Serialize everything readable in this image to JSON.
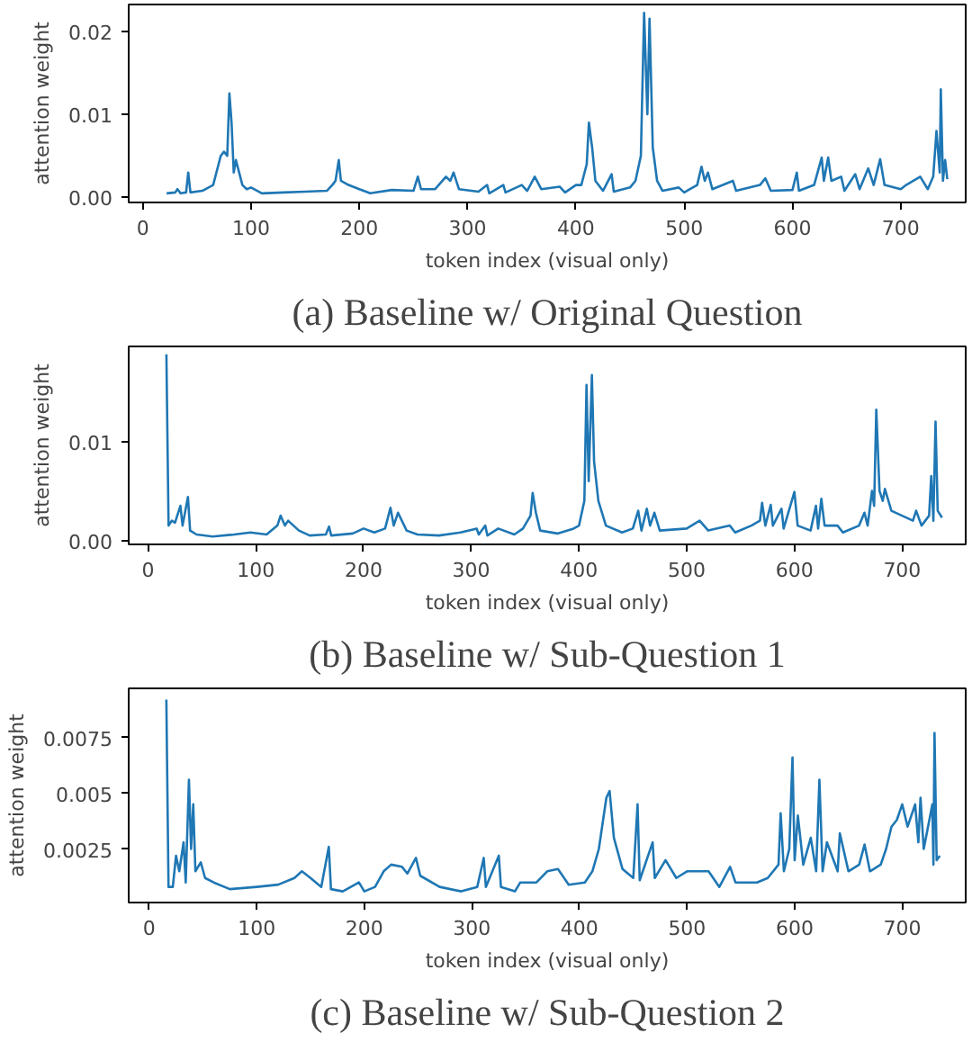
{
  "chart_data": [
    {
      "type": "line",
      "title": "(a) Baseline w/ Original Question",
      "xlabel": "token index (visual only)",
      "ylabel": "attention weight",
      "grid": false,
      "xlim": [
        -13,
        760
      ],
      "ylim": [
        -0.0006,
        0.0232
      ],
      "xticks": [
        0,
        100,
        200,
        300,
        400,
        500,
        600,
        700
      ],
      "yticks": [
        {
          "value": 0,
          "label": "0.00"
        },
        {
          "value": 0.01,
          "label": "0.01"
        },
        {
          "value": 0.02,
          "label": "0.02"
        }
      ],
      "x": [
        22,
        30,
        32,
        35,
        40,
        42,
        44,
        55,
        65,
        72,
        75,
        78,
        80,
        82,
        84,
        86,
        88,
        92,
        96,
        100,
        110,
        130,
        150,
        170,
        175,
        178,
        181,
        183,
        190,
        200,
        210,
        230,
        250,
        254,
        257,
        270,
        280,
        284,
        287,
        292,
        310,
        318,
        320,
        333,
        335,
        350,
        355,
        362,
        368,
        385,
        390,
        400,
        405,
        410,
        412,
        415,
        418,
        425,
        433,
        435,
        450,
        455,
        460,
        463,
        466,
        468,
        471,
        475,
        480,
        495,
        500,
        512,
        516,
        519,
        522,
        526,
        545,
        548,
        570,
        575,
        580,
        600,
        604,
        606,
        620,
        627,
        629,
        633,
        636,
        645,
        648,
        658,
        662,
        670,
        675,
        681,
        685,
        700,
        705,
        718,
        725,
        730,
        733,
        736,
        737,
        739,
        741,
        743
      ],
      "series": [
        {
          "color": "#1f77b4",
          "values": [
            0.0005,
            0.0006,
            0.001,
            0.0005,
            0.0006,
            0.003,
            0.0006,
            0.0008,
            0.0015,
            0.005,
            0.0055,
            0.005,
            0.0125,
            0.009,
            0.003,
            0.0045,
            0.0035,
            0.0015,
            0.001,
            0.0012,
            0.0005,
            0.0006,
            0.0007,
            0.0008,
            0.0015,
            0.002,
            0.0045,
            0.002,
            0.0015,
            0.001,
            0.0005,
            0.0009,
            0.0008,
            0.0025,
            0.001,
            0.001,
            0.0025,
            0.002,
            0.003,
            0.001,
            0.0007,
            0.0015,
            0.0005,
            0.0015,
            0.0006,
            0.0015,
            0.0008,
            0.0025,
            0.001,
            0.0013,
            0.0006,
            0.0015,
            0.0015,
            0.004,
            0.009,
            0.006,
            0.002,
            0.0008,
            0.0028,
            0.0007,
            0.0012,
            0.002,
            0.005,
            0.0222,
            0.01,
            0.0215,
            0.006,
            0.002,
            0.0008,
            0.0012,
            0.0006,
            0.0015,
            0.0037,
            0.002,
            0.003,
            0.001,
            0.002,
            0.0008,
            0.0015,
            0.0023,
            0.0008,
            0.0009,
            0.003,
            0.0008,
            0.0015,
            0.0048,
            0.002,
            0.0048,
            0.002,
            0.0025,
            0.0008,
            0.0028,
            0.001,
            0.0035,
            0.0015,
            0.0046,
            0.0015,
            0.001,
            0.0015,
            0.0025,
            0.001,
            0.0025,
            0.008,
            0.003,
            0.013,
            0.002,
            0.0045,
            0.0022
          ]
        }
      ]
    },
    {
      "type": "line",
      "title": "(b) Baseline w/ Sub-Question 1",
      "xlabel": "token index (visual only)",
      "ylabel": "attention weight",
      "grid": false,
      "xlim": [
        -18,
        759
      ],
      "ylim": [
        -0.0004,
        0.0196
      ],
      "xticks": [
        0,
        100,
        200,
        300,
        400,
        500,
        600,
        700
      ],
      "yticks": [
        {
          "value": 0,
          "label": "0.00"
        },
        {
          "value": 0.01,
          "label": "0.01"
        }
      ],
      "x": [
        17,
        19,
        22,
        25,
        30,
        32,
        37,
        39,
        45,
        60,
        80,
        95,
        110,
        120,
        123,
        127,
        130,
        140,
        150,
        165,
        168,
        170,
        190,
        200,
        210,
        220,
        225,
        228,
        232,
        240,
        250,
        270,
        290,
        305,
        307,
        313,
        315,
        325,
        340,
        348,
        355,
        357,
        360,
        364,
        380,
        395,
        400,
        405,
        407,
        409,
        412,
        414,
        418,
        425,
        440,
        450,
        455,
        458,
        463,
        466,
        470,
        475,
        500,
        512,
        520,
        540,
        545,
        560,
        568,
        570,
        573,
        578,
        580,
        588,
        590,
        600,
        603,
        615,
        620,
        622,
        625,
        628,
        640,
        645,
        660,
        665,
        668,
        672,
        674,
        676,
        679,
        682,
        684,
        690,
        700,
        710,
        713,
        718,
        725,
        727,
        729,
        731,
        733,
        737
      ],
      "series": [
        {
          "color": "#1f77b4",
          "values": [
            0.0188,
            0.0015,
            0.002,
            0.0018,
            0.0035,
            0.0015,
            0.0044,
            0.001,
            0.0006,
            0.0004,
            0.0006,
            0.0008,
            0.0006,
            0.0015,
            0.0025,
            0.0015,
            0.002,
            0.001,
            0.0005,
            0.0006,
            0.0014,
            0.0005,
            0.0007,
            0.0012,
            0.0008,
            0.0012,
            0.0033,
            0.0015,
            0.0028,
            0.001,
            0.0006,
            0.0005,
            0.0008,
            0.0012,
            0.0006,
            0.0015,
            0.0005,
            0.0012,
            0.0006,
            0.0012,
            0.0025,
            0.0048,
            0.0028,
            0.001,
            0.0007,
            0.0012,
            0.0015,
            0.004,
            0.0157,
            0.006,
            0.0167,
            0.008,
            0.004,
            0.0015,
            0.0008,
            0.0012,
            0.003,
            0.001,
            0.0032,
            0.0015,
            0.0028,
            0.001,
            0.0012,
            0.002,
            0.001,
            0.0015,
            0.0008,
            0.0015,
            0.002,
            0.0038,
            0.0015,
            0.0036,
            0.0015,
            0.0032,
            0.0012,
            0.0049,
            0.0015,
            0.001,
            0.0035,
            0.0012,
            0.0042,
            0.0015,
            0.0015,
            0.0008,
            0.0015,
            0.0028,
            0.0015,
            0.005,
            0.0035,
            0.0132,
            0.005,
            0.004,
            0.0052,
            0.003,
            0.0025,
            0.002,
            0.003,
            0.0015,
            0.0025,
            0.0065,
            0.002,
            0.012,
            0.003,
            0.0023
          ]
        }
      ]
    },
    {
      "type": "line",
      "title": "(c) Baseline w/ Sub-Question 2",
      "xlabel": "token index (visual only)",
      "ylabel": "attention weight",
      "grid": false,
      "xlim": [
        -19,
        759
      ],
      "ylim": [
        0.0001,
        0.0097
      ],
      "xticks": [
        0,
        100,
        200,
        300,
        400,
        500,
        600,
        700
      ],
      "yticks": [
        0.0025,
        0.005,
        0.0075
      ],
      "x": [
        16,
        18,
        22,
        25,
        28,
        32,
        34,
        37,
        39,
        41,
        43,
        48,
        52,
        60,
        75,
        100,
        120,
        135,
        142,
        150,
        160,
        167,
        169,
        180,
        195,
        200,
        210,
        218,
        225,
        235,
        240,
        248,
        252,
        270,
        290,
        305,
        311,
        313,
        325,
        327,
        340,
        345,
        360,
        370,
        380,
        390,
        405,
        412,
        418,
        425,
        428,
        432,
        440,
        450,
        454,
        456,
        468,
        470,
        480,
        490,
        500,
        520,
        530,
        540,
        545,
        565,
        575,
        585,
        587,
        590,
        595,
        598,
        600,
        603,
        608,
        615,
        620,
        623,
        626,
        630,
        640,
        642,
        650,
        660,
        665,
        670,
        680,
        685,
        690,
        695,
        700,
        705,
        712,
        715,
        717,
        720,
        728,
        729,
        730,
        732,
        735
      ],
      "series": [
        {
          "color": "#1f77b4",
          "values": [
            0.0092,
            0.0008,
            0.0008,
            0.0022,
            0.0015,
            0.0028,
            0.001,
            0.0056,
            0.0025,
            0.0045,
            0.0015,
            0.0019,
            0.0012,
            0.001,
            0.0007,
            0.0008,
            0.0009,
            0.0012,
            0.0015,
            0.0012,
            0.0008,
            0.0026,
            0.0007,
            0.0006,
            0.001,
            0.0006,
            0.0008,
            0.0015,
            0.0018,
            0.0017,
            0.0014,
            0.0021,
            0.0013,
            0.0008,
            0.0006,
            0.0008,
            0.0021,
            0.0008,
            0.0022,
            0.0008,
            0.0006,
            0.001,
            0.001,
            0.0015,
            0.0016,
            0.0009,
            0.001,
            0.0015,
            0.0025,
            0.0048,
            0.0051,
            0.003,
            0.0016,
            0.0012,
            0.0045,
            0.0011,
            0.0028,
            0.0012,
            0.002,
            0.0012,
            0.0015,
            0.0015,
            0.0008,
            0.0017,
            0.001,
            0.001,
            0.0012,
            0.0018,
            0.0041,
            0.0015,
            0.0025,
            0.0066,
            0.002,
            0.004,
            0.0018,
            0.003,
            0.0015,
            0.0056,
            0.0015,
            0.0028,
            0.0015,
            0.0032,
            0.0015,
            0.0018,
            0.0027,
            0.0015,
            0.0018,
            0.0025,
            0.0035,
            0.0038,
            0.0045,
            0.0035,
            0.0045,
            0.0028,
            0.0048,
            0.0025,
            0.0045,
            0.0018,
            0.0077,
            0.002,
            0.0022
          ]
        }
      ]
    }
  ]
}
